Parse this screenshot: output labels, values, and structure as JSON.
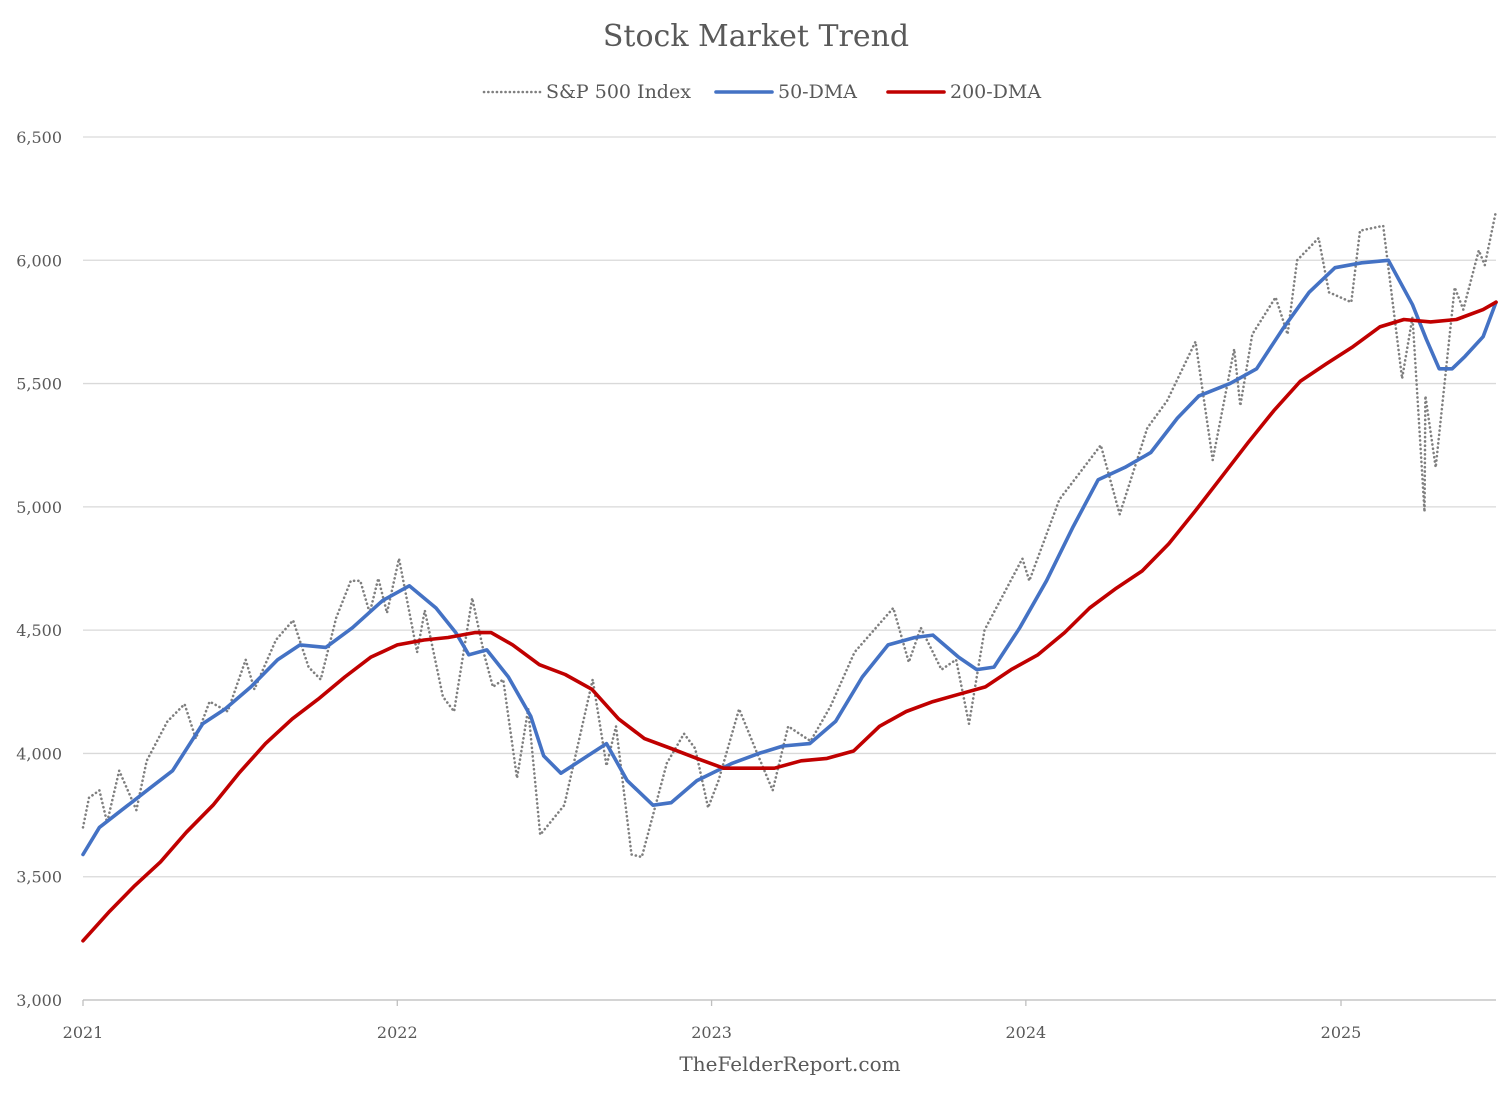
{
  "chart_data": {
    "type": "line",
    "title": "Stock Market Trend",
    "footer": "TheFelderReport.com",
    "ylim": [
      3000,
      6500
    ],
    "yticks": [
      3000,
      3500,
      4000,
      4500,
      5000,
      5500,
      6000,
      6500
    ],
    "ytick_labels": [
      "3,000",
      "3,500",
      "4,000",
      "4,500",
      "5,000",
      "5,500",
      "6,000",
      "6,500"
    ],
    "xlim": [
      "2021-01-01",
      "2025-06-30"
    ],
    "xticks": [
      "2021-01-01",
      "2022-01-01",
      "2023-01-01",
      "2024-01-01",
      "2025-01-01"
    ],
    "xtick_labels": [
      "2021",
      "2022",
      "2023",
      "2024",
      "2025"
    ],
    "grid": "horizontal",
    "legend_position": "top",
    "series": [
      {
        "name": "S&P 500 Index",
        "color": "#7f7f7f",
        "style": "dotted",
        "points": [
          [
            "2021-01-01",
            3700
          ],
          [
            "2021-01-08",
            3820
          ],
          [
            "2021-01-20",
            3850
          ],
          [
            "2021-01-29",
            3720
          ],
          [
            "2021-02-12",
            3930
          ],
          [
            "2021-03-04",
            3770
          ],
          [
            "2021-03-16",
            3970
          ],
          [
            "2021-04-09",
            4130
          ],
          [
            "2021-04-29",
            4200
          ],
          [
            "2021-05-12",
            4060
          ],
          [
            "2021-05-28",
            4210
          ],
          [
            "2021-06-18",
            4170
          ],
          [
            "2021-07-09",
            4380
          ],
          [
            "2021-07-19",
            4260
          ],
          [
            "2021-08-13",
            4460
          ],
          [
            "2021-09-02",
            4540
          ],
          [
            "2021-09-20",
            4350
          ],
          [
            "2021-10-04",
            4300
          ],
          [
            "2021-10-22",
            4550
          ],
          [
            "2021-11-08",
            4700
          ],
          [
            "2021-11-19",
            4700
          ],
          [
            "2021-11-30",
            4570
          ],
          [
            "2021-12-10",
            4710
          ],
          [
            "2021-12-20",
            4570
          ],
          [
            "2022-01-03",
            4790
          ],
          [
            "2022-01-24",
            4410
          ],
          [
            "2022-02-02",
            4580
          ],
          [
            "2022-02-23",
            4230
          ],
          [
            "2022-03-08",
            4170
          ],
          [
            "2022-03-29",
            4630
          ],
          [
            "2022-04-12",
            4400
          ],
          [
            "2022-04-22",
            4270
          ],
          [
            "2022-05-04",
            4300
          ],
          [
            "2022-05-20",
            3900
          ],
          [
            "2022-06-02",
            4180
          ],
          [
            "2022-06-16",
            3670
          ],
          [
            "2022-07-14",
            3790
          ],
          [
            "2022-08-16",
            4300
          ],
          [
            "2022-09-01",
            3950
          ],
          [
            "2022-09-12",
            4110
          ],
          [
            "2022-09-30",
            3590
          ],
          [
            "2022-10-12",
            3580
          ],
          [
            "2022-11-10",
            3960
          ],
          [
            "2022-11-30",
            4080
          ],
          [
            "2022-12-13",
            4020
          ],
          [
            "2022-12-28",
            3780
          ],
          [
            "2023-01-09",
            3890
          ],
          [
            "2023-02-02",
            4180
          ],
          [
            "2023-02-23",
            4000
          ],
          [
            "2023-03-13",
            3850
          ],
          [
            "2023-03-31",
            4110
          ],
          [
            "2023-04-26",
            4050
          ],
          [
            "2023-05-19",
            4190
          ],
          [
            "2023-06-16",
            4410
          ],
          [
            "2023-07-31",
            4590
          ],
          [
            "2023-08-18",
            4370
          ],
          [
            "2023-09-01",
            4510
          ],
          [
            "2023-09-25",
            4340
          ],
          [
            "2023-10-12",
            4380
          ],
          [
            "2023-10-27",
            4120
          ],
          [
            "2023-11-14",
            4500
          ],
          [
            "2023-12-28",
            4790
          ],
          [
            "2024-01-05",
            4700
          ],
          [
            "2024-02-09",
            5030
          ],
          [
            "2024-03-28",
            5250
          ],
          [
            "2024-04-19",
            4970
          ],
          [
            "2024-05-21",
            5320
          ],
          [
            "2024-06-13",
            5430
          ],
          [
            "2024-07-16",
            5670
          ],
          [
            "2024-08-05",
            5190
          ],
          [
            "2024-08-30",
            5640
          ],
          [
            "2024-09-06",
            5410
          ],
          [
            "2024-09-20",
            5700
          ],
          [
            "2024-10-17",
            5850
          ],
          [
            "2024-10-31",
            5700
          ],
          [
            "2024-11-11",
            6000
          ],
          [
            "2024-12-06",
            6090
          ],
          [
            "2024-12-18",
            5870
          ],
          [
            "2025-01-13",
            5830
          ],
          [
            "2025-01-23",
            6120
          ],
          [
            "2025-02-19",
            6140
          ],
          [
            "2025-03-13",
            5520
          ],
          [
            "2025-03-25",
            5770
          ],
          [
            "2025-04-08",
            4980
          ],
          [
            "2025-04-09",
            5450
          ],
          [
            "2025-04-21",
            5160
          ],
          [
            "2025-05-13",
            5890
          ],
          [
            "2025-05-23",
            5800
          ],
          [
            "2025-06-10",
            6040
          ],
          [
            "2025-06-17",
            5980
          ],
          [
            "2025-06-30",
            6200
          ]
        ]
      },
      {
        "name": "50-DMA",
        "color": "#4472c4",
        "style": "solid",
        "points": [
          [
            "2021-01-01",
            3590
          ],
          [
            "2021-01-20",
            3700
          ],
          [
            "2021-02-15",
            3770
          ],
          [
            "2021-03-20",
            3860
          ],
          [
            "2021-04-15",
            3930
          ],
          [
            "2021-05-20",
            4120
          ],
          [
            "2021-06-15",
            4180
          ],
          [
            "2021-07-15",
            4270
          ],
          [
            "2021-08-15",
            4380
          ],
          [
            "2021-09-10",
            4440
          ],
          [
            "2021-10-10",
            4430
          ],
          [
            "2021-11-10",
            4510
          ],
          [
            "2021-12-15",
            4620
          ],
          [
            "2022-01-15",
            4680
          ],
          [
            "2022-02-15",
            4590
          ],
          [
            "2022-03-10",
            4490
          ],
          [
            "2022-03-25",
            4400
          ],
          [
            "2022-04-15",
            4420
          ],
          [
            "2022-05-10",
            4310
          ],
          [
            "2022-06-05",
            4150
          ],
          [
            "2022-06-20",
            3990
          ],
          [
            "2022-07-10",
            3920
          ],
          [
            "2022-08-10",
            3990
          ],
          [
            "2022-09-01",
            4040
          ],
          [
            "2022-09-25",
            3890
          ],
          [
            "2022-10-25",
            3790
          ],
          [
            "2022-11-15",
            3800
          ],
          [
            "2022-12-15",
            3890
          ],
          [
            "2023-01-25",
            3960
          ],
          [
            "2023-02-25",
            4000
          ],
          [
            "2023-03-25",
            4030
          ],
          [
            "2023-04-25",
            4040
          ],
          [
            "2023-05-25",
            4130
          ],
          [
            "2023-06-25",
            4310
          ],
          [
            "2023-07-25",
            4440
          ],
          [
            "2023-08-25",
            4470
          ],
          [
            "2023-09-15",
            4480
          ],
          [
            "2023-10-15",
            4390
          ],
          [
            "2023-11-05",
            4340
          ],
          [
            "2023-11-25",
            4350
          ],
          [
            "2023-12-25",
            4510
          ],
          [
            "2024-01-25",
            4700
          ],
          [
            "2024-02-25",
            4920
          ],
          [
            "2024-03-25",
            5110
          ],
          [
            "2024-04-25",
            5160
          ],
          [
            "2024-05-25",
            5220
          ],
          [
            "2024-06-25",
            5360
          ],
          [
            "2024-07-20",
            5450
          ],
          [
            "2024-08-25",
            5500
          ],
          [
            "2024-09-25",
            5560
          ],
          [
            "2024-10-25",
            5720
          ],
          [
            "2024-11-25",
            5870
          ],
          [
            "2024-12-25",
            5970
          ],
          [
            "2025-01-25",
            5990
          ],
          [
            "2025-02-25",
            6000
          ],
          [
            "2025-03-25",
            5820
          ],
          [
            "2025-04-10",
            5680
          ],
          [
            "2025-04-25",
            5560
          ],
          [
            "2025-05-10",
            5560
          ],
          [
            "2025-05-25",
            5610
          ],
          [
            "2025-06-15",
            5690
          ],
          [
            "2025-06-30",
            5830
          ]
        ]
      },
      {
        "name": "200-DMA",
        "color": "#c00000",
        "style": "solid",
        "points": [
          [
            "2021-01-01",
            3240
          ],
          [
            "2021-02-01",
            3360
          ],
          [
            "2021-03-01",
            3460
          ],
          [
            "2021-04-01",
            3560
          ],
          [
            "2021-05-01",
            3680
          ],
          [
            "2021-06-01",
            3790
          ],
          [
            "2021-07-01",
            3920
          ],
          [
            "2021-08-01",
            4040
          ],
          [
            "2021-09-01",
            4140
          ],
          [
            "2021-10-01",
            4220
          ],
          [
            "2021-11-01",
            4310
          ],
          [
            "2021-12-01",
            4390
          ],
          [
            "2022-01-01",
            4440
          ],
          [
            "2022-02-01",
            4460
          ],
          [
            "2022-03-01",
            4470
          ],
          [
            "2022-04-01",
            4490
          ],
          [
            "2022-04-20",
            4490
          ],
          [
            "2022-05-15",
            4440
          ],
          [
            "2022-06-15",
            4360
          ],
          [
            "2022-07-15",
            4320
          ],
          [
            "2022-08-15",
            4260
          ],
          [
            "2022-09-15",
            4140
          ],
          [
            "2022-10-15",
            4060
          ],
          [
            "2022-11-15",
            4020
          ],
          [
            "2022-12-15",
            3980
          ],
          [
            "2023-01-15",
            3940
          ],
          [
            "2023-02-15",
            3940
          ],
          [
            "2023-03-15",
            3940
          ],
          [
            "2023-04-15",
            3970
          ],
          [
            "2023-05-15",
            3980
          ],
          [
            "2023-06-15",
            4010
          ],
          [
            "2023-07-15",
            4110
          ],
          [
            "2023-08-15",
            4170
          ],
          [
            "2023-09-15",
            4210
          ],
          [
            "2023-10-15",
            4240
          ],
          [
            "2023-11-15",
            4270
          ],
          [
            "2023-12-15",
            4340
          ],
          [
            "2024-01-15",
            4400
          ],
          [
            "2024-02-15",
            4490
          ],
          [
            "2024-03-15",
            4590
          ],
          [
            "2024-04-15",
            4670
          ],
          [
            "2024-05-15",
            4740
          ],
          [
            "2024-06-15",
            4850
          ],
          [
            "2024-07-15",
            4980
          ],
          [
            "2024-08-15",
            5120
          ],
          [
            "2024-09-15",
            5260
          ],
          [
            "2024-10-15",
            5390
          ],
          [
            "2024-11-15",
            5510
          ],
          [
            "2024-12-15",
            5580
          ],
          [
            "2025-01-15",
            5650
          ],
          [
            "2025-02-15",
            5730
          ],
          [
            "2025-03-15",
            5760
          ],
          [
            "2025-04-15",
            5750
          ],
          [
            "2025-05-15",
            5760
          ],
          [
            "2025-06-15",
            5800
          ],
          [
            "2025-06-30",
            5830
          ]
        ]
      }
    ]
  }
}
